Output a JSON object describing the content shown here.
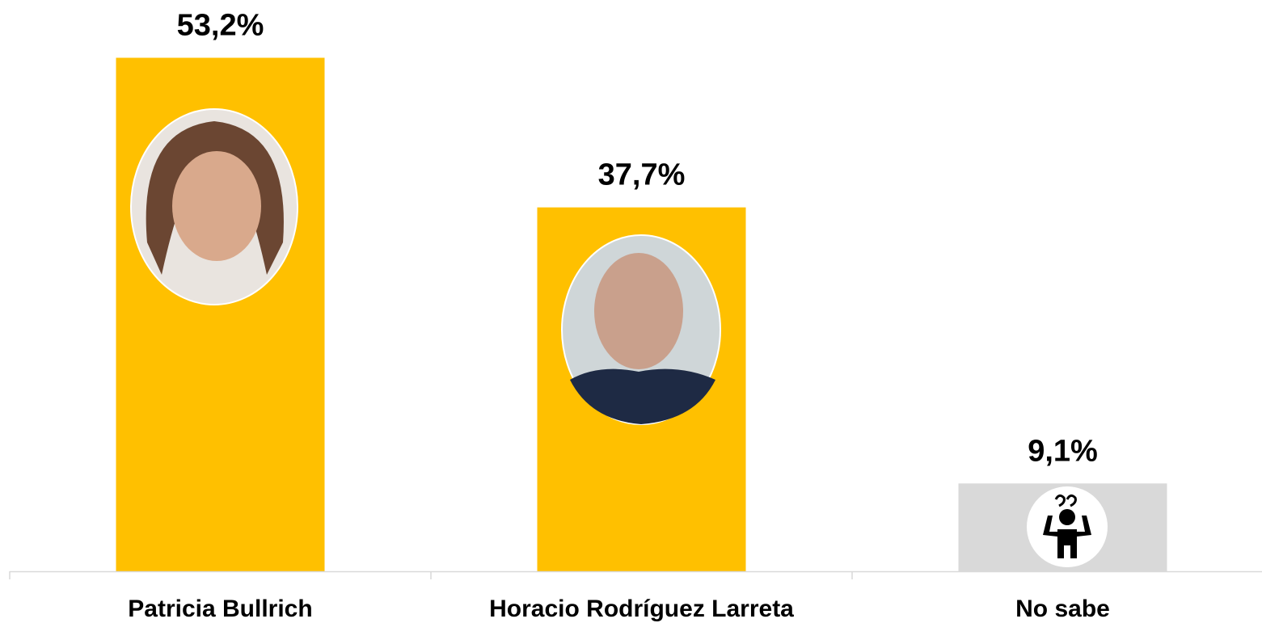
{
  "chart_data": {
    "type": "bar",
    "categories": [
      "Patricia Bullrich",
      "Horacio Rodríguez Larreta",
      "No sabe"
    ],
    "values": [
      53.2,
      37.7,
      9.1
    ],
    "value_labels": [
      "53,2%",
      "37,7%",
      "9,1%"
    ],
    "colors": [
      "#FFC000",
      "#FFC000",
      "#D9D9D9"
    ],
    "ylim": [
      0,
      55
    ]
  }
}
